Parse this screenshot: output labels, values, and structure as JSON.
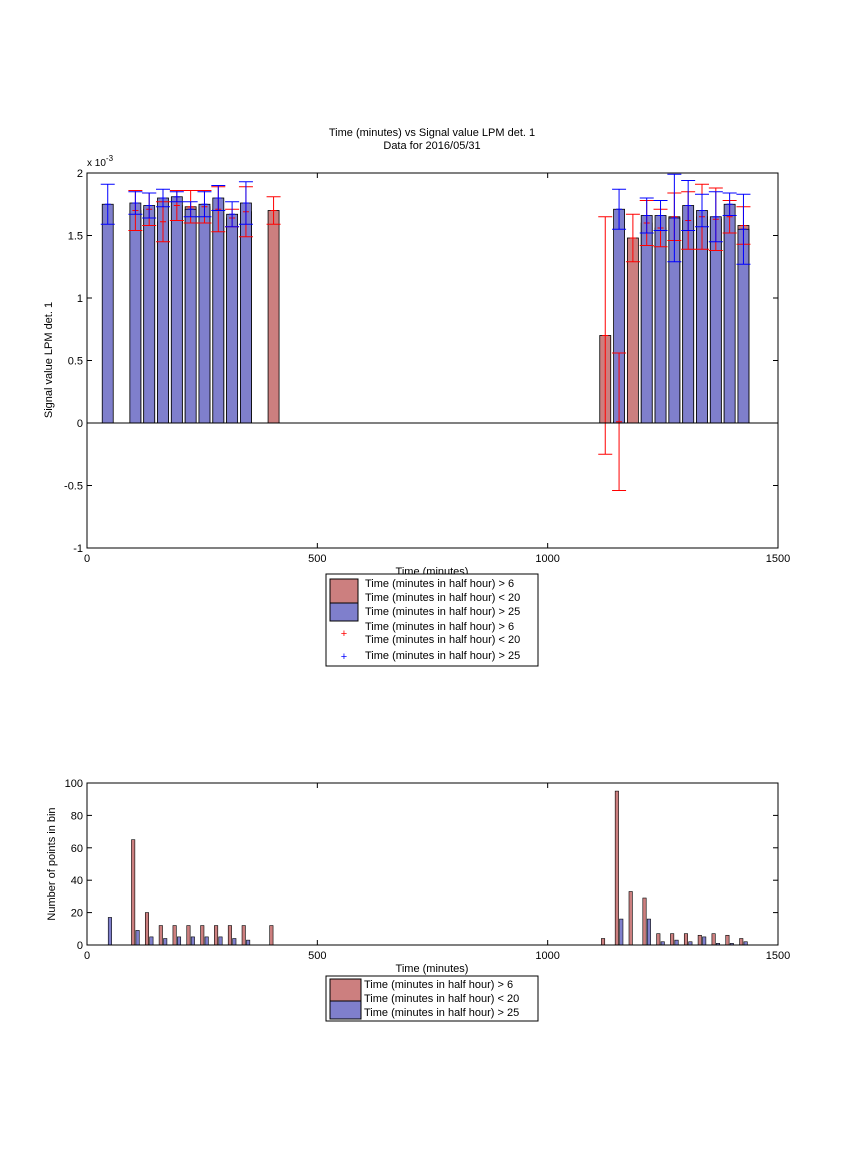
{
  "chart_data": [
    {
      "type": "bar",
      "title": "Time (minutes) vs Signal value LPM det. 1",
      "subtitle": "Data for 2016/05/31",
      "xlabel": "Time (minutes)",
      "ylabel": "Signal value LPM det. 1",
      "exponent_label": "x 10",
      "exponent_power": "-3",
      "xlim": [
        0,
        1500
      ],
      "ylim": [
        -1,
        2
      ],
      "xticks": [
        "0",
        "500",
        "1000",
        "1500"
      ],
      "yticks": [
        "-1",
        "-0.5",
        "0",
        "0.5",
        "1",
        "1.5",
        "2"
      ],
      "grid": false,
      "legend": {
        "placement": "below",
        "entries": [
          {
            "label": "Time (minutes in half hour) > 6"
          },
          {
            "label": "Time (minutes in half hour) < 20"
          },
          {
            "label": "Time (minutes in half hour) > 25"
          },
          {
            "label": "Time (minutes in half hour) > 6"
          },
          {
            "label": "Time (minutes in half hour) < 20"
          },
          {
            "label": "Time (minutes in half hour) > 25"
          }
        ]
      },
      "colors": {
        "red_bar": "#cc7f7f",
        "blue_bar": "#7f7fcc",
        "red_err": "#ff0000",
        "blue_err": "#0000ff"
      },
      "series": [
        {
          "color": "red",
          "x": [
            105,
            135,
            165,
            195,
            225,
            255,
            285,
            315,
            345,
            405,
            1125,
            1155,
            1185,
            1215,
            1245,
            1275,
            1305,
            1335,
            1365,
            1395,
            1425
          ],
          "values": [
            1.7,
            1.71,
            1.61,
            1.74,
            1.73,
            1.73,
            1.71,
            1.64,
            1.69,
            1.7,
            0.7,
            0.01,
            1.48,
            1.6,
            1.56,
            1.65,
            1.62,
            1.65,
            1.63,
            1.65,
            1.58
          ],
          "err": [
            0.16,
            0.13,
            0.16,
            0.12,
            0.13,
            0.13,
            0.18,
            0.07,
            0.2,
            0.11,
            0.95,
            0.55,
            0.19,
            0.18,
            0.15,
            0.19,
            0.23,
            0.26,
            0.25,
            0.13,
            0.15
          ]
        },
        {
          "color": "blue",
          "x": [
            45,
            105,
            135,
            165,
            195,
            225,
            255,
            285,
            315,
            345,
            1155,
            1215,
            1245,
            1275,
            1305,
            1335,
            1365,
            1395,
            1425
          ],
          "values": [
            1.75,
            1.76,
            1.74,
            1.8,
            1.81,
            1.71,
            1.75,
            1.8,
            1.67,
            1.76,
            1.71,
            1.66,
            1.66,
            1.64,
            1.74,
            1.7,
            1.65,
            1.75,
            1.55
          ],
          "err": [
            0.16,
            0.09,
            0.1,
            0.07,
            0.04,
            0.06,
            0.1,
            0.1,
            0.1,
            0.17,
            0.16,
            0.14,
            0.12,
            0.35,
            0.2,
            0.13,
            0.2,
            0.09,
            0.28
          ]
        }
      ]
    },
    {
      "type": "bar",
      "title": "",
      "xlabel": "Time (minutes)",
      "ylabel": "Number of points in bin",
      "xlim": [
        0,
        1500
      ],
      "ylim": [
        0,
        100
      ],
      "xticks": [
        "0",
        "500",
        "1000",
        "1500"
      ],
      "yticks": [
        "0",
        "20",
        "40",
        "60",
        "80",
        "100"
      ],
      "grid": false,
      "legend": {
        "placement": "below",
        "entries": [
          {
            "label": "Time (minutes in half hour) > 6"
          },
          {
            "label": "Time (minutes in half hour) < 20"
          },
          {
            "label": "Time (minutes in half hour) > 25"
          }
        ]
      },
      "series": [
        {
          "color": "red",
          "x": [
            105,
            135,
            165,
            195,
            225,
            255,
            285,
            315,
            345,
            405,
            1125,
            1155,
            1185,
            1215,
            1245,
            1275,
            1305,
            1335,
            1365,
            1395,
            1425
          ],
          "values": [
            65,
            20,
            12,
            12,
            12,
            12,
            12,
            12,
            12,
            12,
            4,
            95,
            33,
            29,
            7,
            7,
            7,
            6,
            7,
            6,
            4
          ]
        },
        {
          "color": "blue",
          "x": [
            45,
            105,
            135,
            165,
            195,
            225,
            255,
            285,
            315,
            345,
            1155,
            1215,
            1245,
            1275,
            1305,
            1335,
            1365,
            1395,
            1425
          ],
          "values": [
            17,
            9,
            5,
            4,
            5,
            5,
            5,
            5,
            4,
            3,
            16,
            16,
            2,
            3,
            2,
            5,
            1,
            1,
            2
          ]
        }
      ]
    }
  ]
}
